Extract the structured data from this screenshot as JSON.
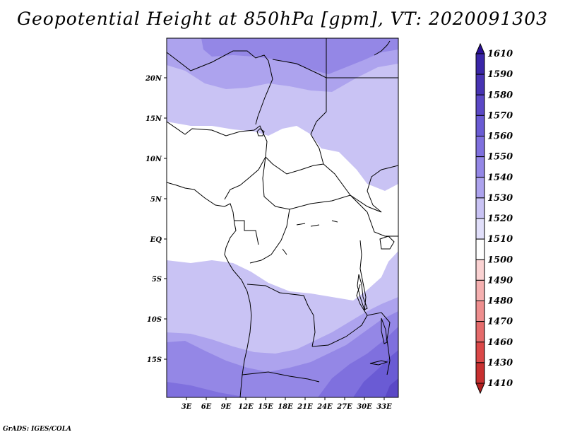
{
  "title": "Geopotential Height at 850hPa [gpm], VT: 2020091303",
  "map": {
    "lon_labels": [
      "3E",
      "6E",
      "9E",
      "12E",
      "15E",
      "18E",
      "21E",
      "24E",
      "27E",
      "30E",
      "33E"
    ],
    "lat_labels": [
      "20N",
      "15N",
      "10N",
      "5N",
      "EQ",
      "5S",
      "10S",
      "15S"
    ]
  },
  "colorbar": {
    "labels": [
      "1610",
      "1590",
      "1580",
      "1570",
      "1560",
      "1550",
      "1540",
      "1530",
      "1520",
      "1510",
      "1500",
      "1490",
      "1480",
      "1470",
      "1460",
      "1430",
      "1410"
    ],
    "colors": [
      "#2a0f96",
      "#3a26a8",
      "#4733b3",
      "#5b48c6",
      "#6a5bd4",
      "#7f70de",
      "#9487e6",
      "#ada3ee",
      "#c9c3f4",
      "#e1dffa",
      "#ffffff",
      "#fad2d2",
      "#f5b0b0",
      "#ee8e8e",
      "#e56b6b",
      "#db4848",
      "#c83030",
      "#b22020"
    ]
  },
  "credit": "GrADS: IGES/COLA"
}
